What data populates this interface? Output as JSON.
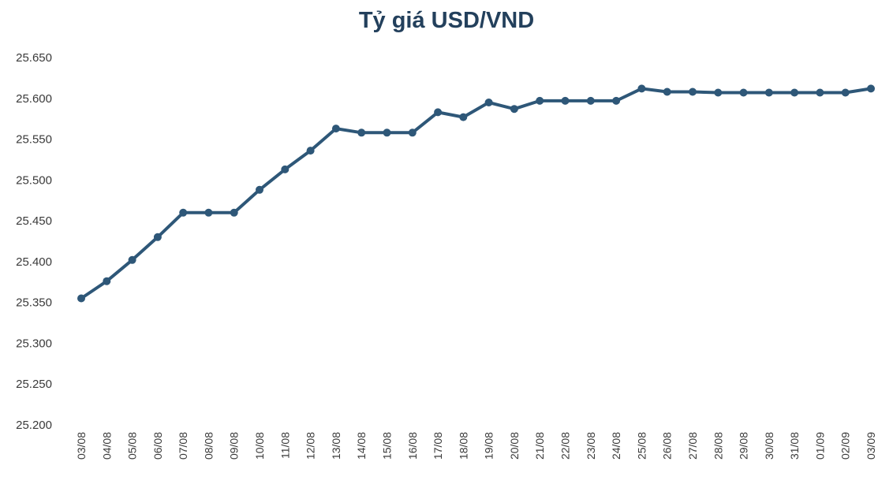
{
  "chart_data": {
    "type": "line",
    "title": "Tỷ giá USD/VND",
    "xlabel": "",
    "ylabel": "",
    "grid": false,
    "legend": "none",
    "ylim": [
      25200,
      25650
    ],
    "y_ticks": [
      25200,
      25250,
      25300,
      25350,
      25400,
      25450,
      25500,
      25550,
      25600,
      25650
    ],
    "y_tick_labels": [
      "25.200",
      "25.250",
      "25.300",
      "25.350",
      "25.400",
      "25.450",
      "25.500",
      "25.550",
      "25.600",
      "25.650"
    ],
    "categories": [
      "03/08",
      "04/08",
      "05/08",
      "06/08",
      "07/08",
      "08/08",
      "09/08",
      "10/08",
      "11/08",
      "12/08",
      "13/08",
      "14/08",
      "15/08",
      "16/08",
      "17/08",
      "18/08",
      "19/08",
      "20/08",
      "21/08",
      "22/08",
      "23/08",
      "24/08",
      "25/08",
      "26/08",
      "27/08",
      "28/08",
      "29/08",
      "30/08",
      "31/08",
      "01/09",
      "02/09",
      "03/09"
    ],
    "series": [
      {
        "color": "#2e5778",
        "values": [
          25355,
          25376,
          25402,
          25430,
          25460,
          25460,
          25460,
          25488,
          25513,
          25536,
          25563,
          25558,
          25558,
          25558,
          25583,
          25577,
          25595,
          25587,
          25597,
          25597,
          25597,
          25597,
          25612,
          25608,
          25608,
          25607,
          25607,
          25607,
          25607,
          25607,
          25607,
          25612
        ]
      }
    ]
  }
}
